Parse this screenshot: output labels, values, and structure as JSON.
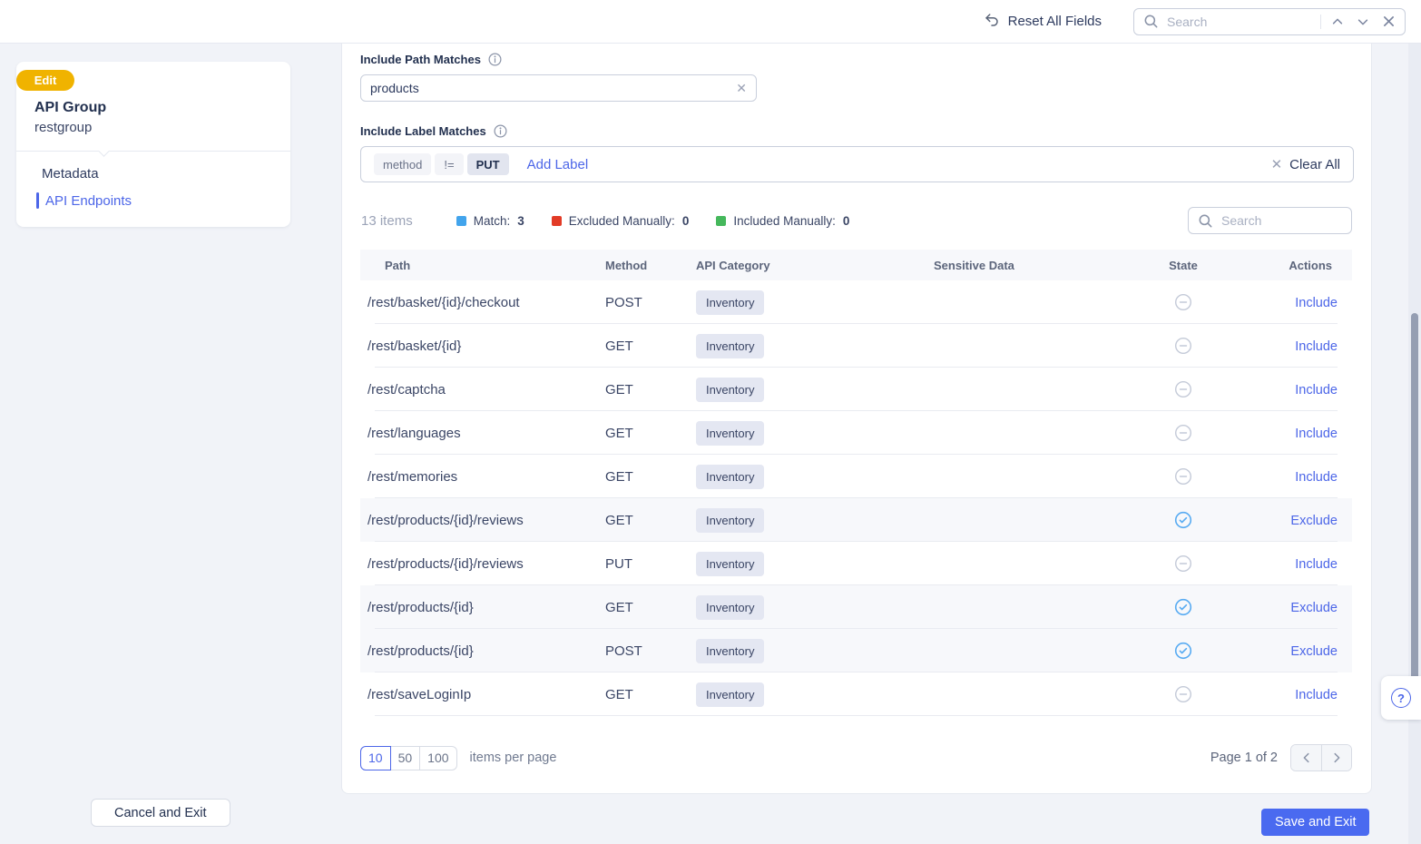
{
  "topbar": {
    "reset_label": "Reset All Fields",
    "search_placeholder": "Search"
  },
  "sidebar": {
    "badge": "Edit",
    "title": "API Group",
    "subtitle": "restgroup",
    "nav": [
      {
        "label": "Metadata"
      },
      {
        "label": "API Endpoints"
      }
    ]
  },
  "filters": {
    "path_matches_label": "Include Path Matches",
    "path_matches_value": "products",
    "label_matches_label": "Include Label Matches",
    "chip_key": "method",
    "chip_op": "!=",
    "chip_value": "PUT",
    "add_label": "Add Label",
    "clear_all": "Clear All"
  },
  "summary": {
    "items_count": "13 items",
    "legend": [
      {
        "label": "Match:",
        "count": "3",
        "color": "#42a4ec"
      },
      {
        "label": "Excluded Manually:",
        "count": "0",
        "color": "#e23b26"
      },
      {
        "label": "Included Manually:",
        "count": "0",
        "color": "#45b85c"
      }
    ],
    "search_placeholder": "Search"
  },
  "table": {
    "columns": [
      "Path",
      "Method",
      "API Category",
      "Sensitive Data",
      "State",
      "Actions"
    ],
    "rows": [
      {
        "path": "/rest/basket/{id}/checkout",
        "method": "POST",
        "category": "Inventory",
        "sensitive": "",
        "state": "none",
        "action": "Include",
        "highlighted": false
      },
      {
        "path": "/rest/basket/{id}",
        "method": "GET",
        "category": "Inventory",
        "sensitive": "",
        "state": "none",
        "action": "Include",
        "highlighted": false
      },
      {
        "path": "/rest/captcha",
        "method": "GET",
        "category": "Inventory",
        "sensitive": "",
        "state": "none",
        "action": "Include",
        "highlighted": false
      },
      {
        "path": "/rest/languages",
        "method": "GET",
        "category": "Inventory",
        "sensitive": "",
        "state": "none",
        "action": "Include",
        "highlighted": false
      },
      {
        "path": "/rest/memories",
        "method": "GET",
        "category": "Inventory",
        "sensitive": "",
        "state": "none",
        "action": "Include",
        "highlighted": false
      },
      {
        "path": "/rest/products/{id}/reviews",
        "method": "GET",
        "category": "Inventory",
        "sensitive": "",
        "state": "included",
        "action": "Exclude",
        "highlighted": true
      },
      {
        "path": "/rest/products/{id}/reviews",
        "method": "PUT",
        "category": "Inventory",
        "sensitive": "",
        "state": "none",
        "action": "Include",
        "highlighted": false
      },
      {
        "path": "/rest/products/{id}",
        "method": "GET",
        "category": "Inventory",
        "sensitive": "",
        "state": "included",
        "action": "Exclude",
        "highlighted": true
      },
      {
        "path": "/rest/products/{id}",
        "method": "POST",
        "category": "Inventory",
        "sensitive": "",
        "state": "included",
        "action": "Exclude",
        "highlighted": true
      },
      {
        "path": "/rest/saveLoginIp",
        "method": "GET",
        "category": "Inventory",
        "sensitive": "",
        "state": "none",
        "action": "Include",
        "highlighted": false
      }
    ]
  },
  "pagination": {
    "sizes": [
      "10",
      "50",
      "100"
    ],
    "active_size": "10",
    "items_per_page_label": "items per page",
    "page_label": "Page 1 of 2"
  },
  "footer": {
    "cancel_label": "Cancel and Exit",
    "save_label": "Save and Exit"
  },
  "help": {
    "glyph": "?"
  },
  "colors": {
    "accent_blue": "#4a6af0",
    "link_blue": "#4c66e8",
    "badge_yellow": "#f0b300",
    "state_check_blue": "#58abf2",
    "state_minus_gray": "#c4cad8"
  }
}
